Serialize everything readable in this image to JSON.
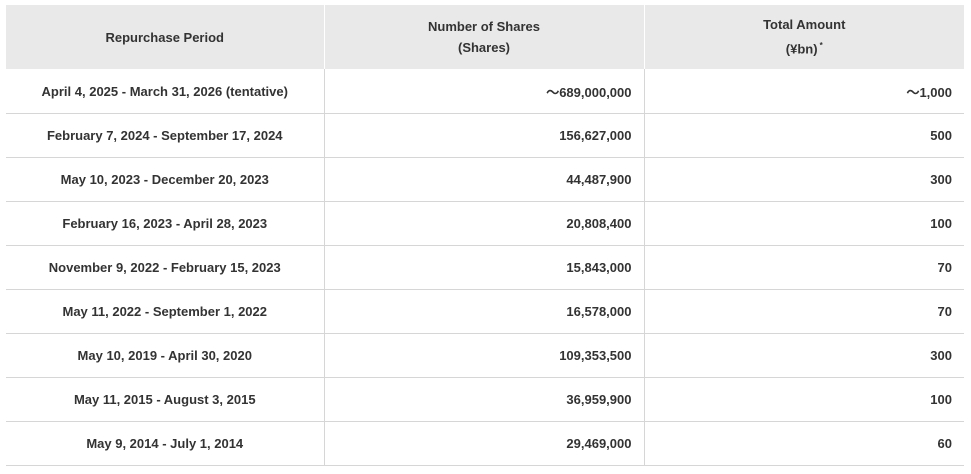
{
  "table": {
    "headers": {
      "period": "Repurchase Period",
      "shares_line1": "Number of Shares",
      "shares_line2": "(Shares)",
      "amount_line1": "Total Amount",
      "amount_line2": "(¥bn)",
      "amount_note_mark": "*"
    },
    "rows": [
      {
        "period": "April 4, 2025 - March 31, 2026 (tentative)",
        "shares": "～689,000,000",
        "amount": "～1,000"
      },
      {
        "period": "February 7, 2024 - September 17, 2024",
        "shares": "156,627,000",
        "amount": "500"
      },
      {
        "period": "May 10, 2023 - December 20, 2023",
        "shares": "44,487,900",
        "amount": "300"
      },
      {
        "period": "February 16, 2023 - April 28, 2023",
        "shares": "20,808,400",
        "amount": "100"
      },
      {
        "period": "November 9, 2022 - February 15, 2023",
        "shares": "15,843,000",
        "amount": "70"
      },
      {
        "period": "May 11, 2022 - September 1, 2022",
        "shares": "16,578,000",
        "amount": "70"
      },
      {
        "period": "May 10, 2019 - April 30, 2020",
        "shares": "109,353,500",
        "amount": "300"
      },
      {
        "period": "May 11, 2015 - August 3, 2015",
        "shares": "36,959,900",
        "amount": "100"
      },
      {
        "period": "May 9, 2014 - July 1, 2014",
        "shares": "29,469,000",
        "amount": "60"
      }
    ]
  }
}
